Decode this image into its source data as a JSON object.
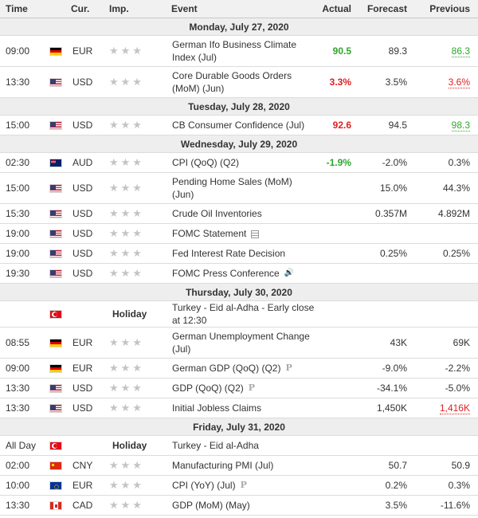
{
  "headers": {
    "time": "Time",
    "cur": "Cur.",
    "imp": "Imp.",
    "event": "Event",
    "actual": "Actual",
    "forecast": "Forecast",
    "previous": "Previous"
  },
  "colors": {
    "green": "#2ea62e",
    "red": "#e21e1e",
    "day_bg": "#eeeeee"
  },
  "days": [
    {
      "label": "Monday, July 27, 2020",
      "rows": [
        {
          "time": "09:00",
          "flag": "de",
          "cur": "EUR",
          "event": "German Ifo Business Climate Index (Jul)",
          "actual": "90.5",
          "actual_color": "green",
          "forecast": "89.3",
          "previous": "86.3",
          "previous_color": "green",
          "tall": true
        },
        {
          "time": "13:30",
          "flag": "us",
          "cur": "USD",
          "event": "Core Durable Goods Orders (MoM) (Jun)",
          "actual": "3.3%",
          "actual_color": "red",
          "forecast": "3.5%",
          "previous": "3.6%",
          "previous_color": "red",
          "tall": true
        }
      ]
    },
    {
      "label": "Tuesday, July 28, 2020",
      "rows": [
        {
          "time": "15:00",
          "flag": "us",
          "cur": "USD",
          "event": "CB Consumer Confidence (Jul)",
          "actual": "92.6",
          "actual_color": "red",
          "forecast": "94.5",
          "previous": "98.3",
          "previous_color": "green"
        }
      ]
    },
    {
      "label": "Wednesday, July 29, 2020",
      "rows": [
        {
          "time": "02:30",
          "flag": "au",
          "cur": "AUD",
          "event": "CPI (QoQ) (Q2)",
          "actual": "-1.9%",
          "actual_color": "green",
          "forecast": "-2.0%",
          "previous": "0.3%"
        },
        {
          "time": "15:00",
          "flag": "us",
          "cur": "USD",
          "event": "Pending Home Sales (MoM) (Jun)",
          "actual": "",
          "forecast": "15.0%",
          "previous": "44.3%",
          "tall": true
        },
        {
          "time": "15:30",
          "flag": "us",
          "cur": "USD",
          "event": "Crude Oil Inventories",
          "actual": "",
          "forecast": "0.357M",
          "previous": "4.892M"
        },
        {
          "time": "19:00",
          "flag": "us",
          "cur": "USD",
          "event": "FOMC Statement",
          "icon": "document-icon",
          "actual": "",
          "forecast": "",
          "previous": ""
        },
        {
          "time": "19:00",
          "flag": "us",
          "cur": "USD",
          "event": "Fed Interest Rate Decision",
          "actual": "",
          "forecast": "0.25%",
          "previous": "0.25%"
        },
        {
          "time": "19:30",
          "flag": "us",
          "cur": "USD",
          "event": "FOMC Press Conference",
          "icon": "speaker-icon",
          "actual": "",
          "forecast": "",
          "previous": ""
        }
      ]
    },
    {
      "label": "Thursday, July 30, 2020",
      "rows": [
        {
          "time": "",
          "flag": "tr",
          "cur": "",
          "holiday": "Holiday",
          "event": "Turkey - Eid al-Adha - Early close at 12:30",
          "actual": "",
          "forecast": "",
          "previous": ""
        },
        {
          "time": "08:55",
          "flag": "de",
          "cur": "EUR",
          "event": "German Unemployment Change (Jul)",
          "actual": "",
          "forecast": "43K",
          "previous": "69K",
          "tall": true
        },
        {
          "time": "09:00",
          "flag": "de",
          "cur": "EUR",
          "event": "German GDP (QoQ) (Q2)",
          "icon": "preliminary-icon",
          "actual": "",
          "forecast": "-9.0%",
          "previous": "-2.2%"
        },
        {
          "time": "13:30",
          "flag": "us",
          "cur": "USD",
          "event": "GDP (QoQ) (Q2)",
          "icon": "preliminary-icon",
          "actual": "",
          "forecast": "-34.1%",
          "previous": "-5.0%"
        },
        {
          "time": "13:30",
          "flag": "us",
          "cur": "USD",
          "event": "Initial Jobless Claims",
          "actual": "",
          "forecast": "1,450K",
          "previous": "1,416K",
          "previous_color": "red"
        }
      ]
    },
    {
      "label": "Friday, July 31, 2020",
      "rows": [
        {
          "time": "All Day",
          "flag": "tr",
          "cur": "",
          "holiday": "Holiday",
          "event": "Turkey - Eid al-Adha",
          "actual": "",
          "forecast": "",
          "previous": ""
        },
        {
          "time": "02:00",
          "flag": "cn",
          "cur": "CNY",
          "event": "Manufacturing PMI (Jul)",
          "actual": "",
          "forecast": "50.7",
          "previous": "50.9"
        },
        {
          "time": "10:00",
          "flag": "eu",
          "cur": "EUR",
          "event": "CPI (YoY) (Jul)",
          "icon": "preliminary-icon",
          "actual": "",
          "forecast": "0.2%",
          "previous": "0.3%"
        },
        {
          "time": "13:30",
          "flag": "ca",
          "cur": "CAD",
          "event": "GDP (MoM) (May)",
          "actual": "",
          "forecast": "3.5%",
          "previous": "-11.6%"
        }
      ]
    }
  ]
}
